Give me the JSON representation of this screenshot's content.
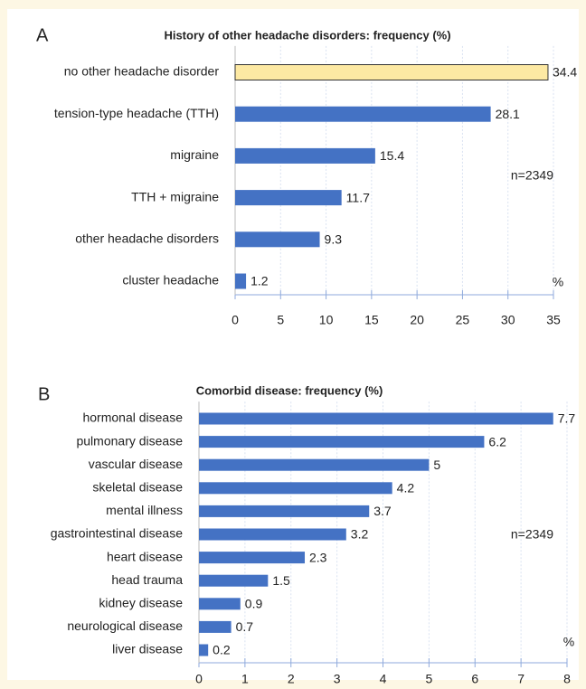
{
  "chart_data": [
    {
      "type": "barh",
      "panel": "A",
      "title": "History of other headache disorders: frequency (%)",
      "categories": [
        "no other headache disorder",
        "tension-type headache (TTH)",
        "migraine",
        "TTH + migraine",
        "other headache disorders",
        "cluster headache"
      ],
      "values": [
        34.4,
        28.1,
        15.4,
        11.7,
        9.3,
        1.2
      ],
      "colors": [
        "#fde9a3",
        "#4472c4",
        "#4472c4",
        "#4472c4",
        "#4472c4",
        "#4472c4"
      ],
      "xlim": [
        0,
        35
      ],
      "xticks": [
        0,
        5,
        10,
        15,
        20,
        25,
        30,
        35
      ],
      "grid": true,
      "annotation": "n=2349",
      "unit": "%"
    },
    {
      "type": "barh",
      "panel": "B",
      "title": "Comorbid disease: frequency (%)",
      "categories": [
        "hormonal disease",
        "pulmonary disease",
        "vascular disease",
        "skeletal disease",
        "mental illness",
        "gastrointestinal disease",
        "heart disease",
        "head trauma",
        "kidney disease",
        "neurological disease",
        "liver disease"
      ],
      "values": [
        7.7,
        6.2,
        5,
        4.2,
        3.7,
        3.2,
        2.3,
        1.5,
        0.9,
        0.7,
        0.2
      ],
      "colors": [
        "#4472c4",
        "#4472c4",
        "#4472c4",
        "#4472c4",
        "#4472c4",
        "#4472c4",
        "#4472c4",
        "#4472c4",
        "#4472c4",
        "#4472c4",
        "#4472c4"
      ],
      "xlim": [
        0,
        8
      ],
      "xticks": [
        0,
        1,
        2,
        3,
        4,
        5,
        6,
        7,
        8
      ],
      "grid": true,
      "annotation": "n=2349",
      "unit": "%"
    }
  ]
}
